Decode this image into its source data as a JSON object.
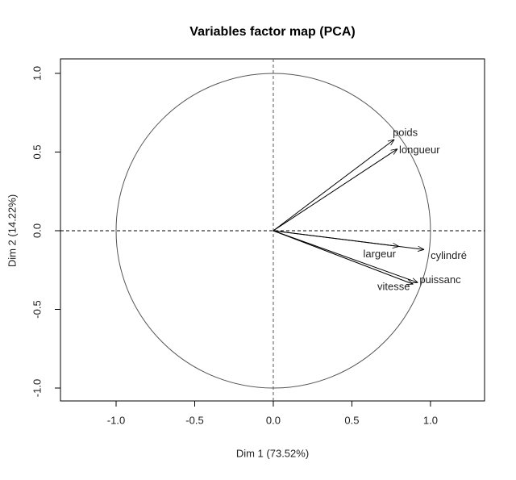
{
  "chart_data": {
    "type": "pca-variables",
    "title": "Variables factor map (PCA)",
    "x_label": "Dim 1 (73.52%)",
    "y_label": "Dim 2 (14.22%)",
    "categories": [
      "poids",
      "longueur",
      "cylindré",
      "largeur",
      "puissanc",
      "vitesse"
    ],
    "x": [
      0.77,
      0.79,
      0.96,
      0.8,
      0.92,
      0.89
    ],
    "values": [
      0.58,
      0.52,
      -0.12,
      -0.1,
      -0.33,
      -0.34
    ],
    "color": "#000000",
    "xlim": [
      -1.354,
      1.344
    ],
    "ylim": [
      -1.082,
      1.092
    ],
    "xticks": [
      {
        "value": -1,
        "label": "-1.0"
      },
      -0.5,
      {
        "value": 0,
        "label": "0.0"
      },
      0.5,
      {
        "value": 1,
        "label": "1.0"
      }
    ],
    "yticks": [
      {
        "value": -1,
        "label": "-1.0"
      },
      -0.5,
      {
        "value": 0,
        "label": "0.0"
      },
      0.5,
      {
        "value": 1,
        "label": "1.0"
      }
    ]
  }
}
